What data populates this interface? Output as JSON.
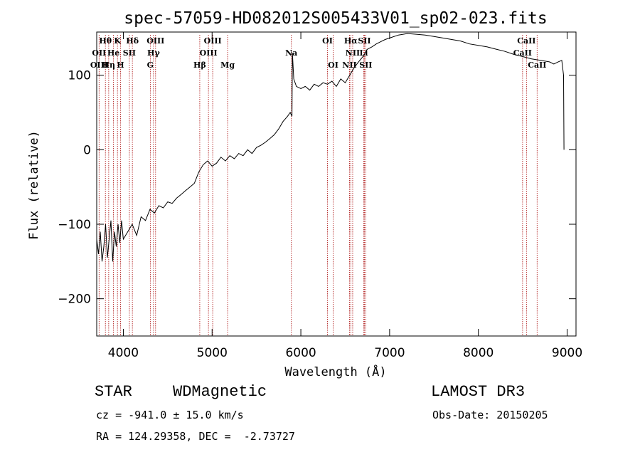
{
  "chart_data": {
    "type": "line",
    "title": "spec-57059-HD082012S005433V01_sp02-023.fits",
    "xlabel": "Wavelength (Å)",
    "ylabel": "Flux (relative)",
    "xlim": [
      3700,
      9100
    ],
    "ylim": [
      -250,
      158
    ],
    "xticks": [
      4000,
      5000,
      6000,
      7000,
      8000,
      9000
    ],
    "yticks": [
      -200,
      -100,
      0,
      100
    ],
    "grid": false,
    "series": [
      {
        "name": "spectrum",
        "x": [
          3700,
          3720,
          3740,
          3760,
          3780,
          3800,
          3820,
          3840,
          3860,
          3880,
          3900,
          3920,
          3940,
          3960,
          3980,
          4000,
          4050,
          4100,
          4150,
          4200,
          4250,
          4300,
          4350,
          4400,
          4450,
          4500,
          4550,
          4600,
          4650,
          4700,
          4750,
          4800,
          4850,
          4900,
          4950,
          5000,
          5050,
          5100,
          5150,
          5200,
          5250,
          5300,
          5350,
          5400,
          5450,
          5500,
          5550,
          5600,
          5650,
          5700,
          5750,
          5800,
          5850,
          5880,
          5900,
          5905,
          5920,
          5950,
          6000,
          6050,
          6100,
          6150,
          6200,
          6250,
          6300,
          6350,
          6400,
          6450,
          6500,
          6550,
          6600,
          6650,
          6700,
          6750,
          6800,
          6850,
          6900,
          6950,
          7000,
          7100,
          7200,
          7300,
          7400,
          7500,
          7600,
          7700,
          7800,
          7900,
          8000,
          8100,
          8200,
          8300,
          8400,
          8500,
          8600,
          8700,
          8800,
          8850,
          8900,
          8940,
          8960,
          8965
        ],
        "y": [
          -120,
          -140,
          -110,
          -150,
          -130,
          -100,
          -145,
          -120,
          -95,
          -150,
          -110,
          -130,
          -100,
          -125,
          -95,
          -120,
          -110,
          -100,
          -115,
          -90,
          -95,
          -80,
          -85,
          -75,
          -78,
          -70,
          -72,
          -65,
          -60,
          -55,
          -50,
          -45,
          -30,
          -20,
          -15,
          -22,
          -18,
          -10,
          -15,
          -8,
          -12,
          -5,
          -8,
          0,
          -5,
          3,
          6,
          10,
          15,
          20,
          28,
          38,
          45,
          50,
          45,
          130,
          95,
          85,
          82,
          85,
          80,
          88,
          85,
          90,
          88,
          92,
          85,
          95,
          90,
          100,
          110,
          118,
          125,
          135,
          138,
          142,
          145,
          148,
          150,
          154,
          156,
          155,
          154,
          152,
          150,
          148,
          146,
          142,
          140,
          138,
          135,
          132,
          128,
          125,
          122,
          120,
          118,
          115,
          118,
          120,
          100,
          0
        ]
      }
    ],
    "line_markers": [
      {
        "label": "Hθ",
        "x": 3798,
        "row": 0
      },
      {
        "label": "K",
        "x": 3934,
        "row": 0
      },
      {
        "label": "Hδ",
        "x": 4102,
        "row": 0
      },
      {
        "label": "OIII",
        "x": 4363,
        "row": 0
      },
      {
        "label": "OIII",
        "x": 5007,
        "row": 0
      },
      {
        "label": "OI",
        "x": 6300,
        "row": 0
      },
      {
        "label": "Hα",
        "x": 6563,
        "row": 0
      },
      {
        "label": "SII",
        "x": 6716,
        "row": 0
      },
      {
        "label": "CaII",
        "x": 8542,
        "row": 0
      },
      {
        "label": "OII",
        "x": 3727,
        "row": 1
      },
      {
        "label": "He",
        "x": 3889,
        "row": 1
      },
      {
        "label": "SII",
        "x": 4068,
        "row": 1
      },
      {
        "label": "Hγ",
        "x": 4340,
        "row": 1
      },
      {
        "label": "OIII",
        "x": 4959,
        "row": 1
      },
      {
        "label": "Na",
        "x": 5893,
        "row": 1
      },
      {
        "label": "NII",
        "x": 6584,
        "row": 1
      },
      {
        "label": "Li",
        "x": 6708,
        "row": 1
      },
      {
        "label": "CaII",
        "x": 8498,
        "row": 1
      },
      {
        "label": "OIII",
        "x": 3727,
        "row": 2
      },
      {
        "label": "Hη",
        "x": 3835,
        "row": 2
      },
      {
        "label": "H",
        "x": 3968,
        "row": 2
      },
      {
        "label": "G",
        "x": 4304,
        "row": 2
      },
      {
        "label": "Hβ",
        "x": 4861,
        "row": 2
      },
      {
        "label": "Mg",
        "x": 5175,
        "row": 2
      },
      {
        "label": "OI",
        "x": 6364,
        "row": 2
      },
      {
        "label": "NII",
        "x": 6548,
        "row": 2
      },
      {
        "label": "SII",
        "x": 6731,
        "row": 2
      },
      {
        "label": "CaII",
        "x": 8662,
        "row": 2
      }
    ]
  },
  "info": {
    "object_type": "STAR",
    "subclass": "WDMagnetic",
    "survey": "LAMOST DR3",
    "redshift": "cz = -941.0 ± 15.0 km/s",
    "obs_date": "Obs-Date: 20150205",
    "coords": "RA = 124.29358, DEC =  -2.73727"
  },
  "colors": {
    "spectrum": "#000000",
    "marker_line": "#b22222",
    "axis": "#000000"
  }
}
